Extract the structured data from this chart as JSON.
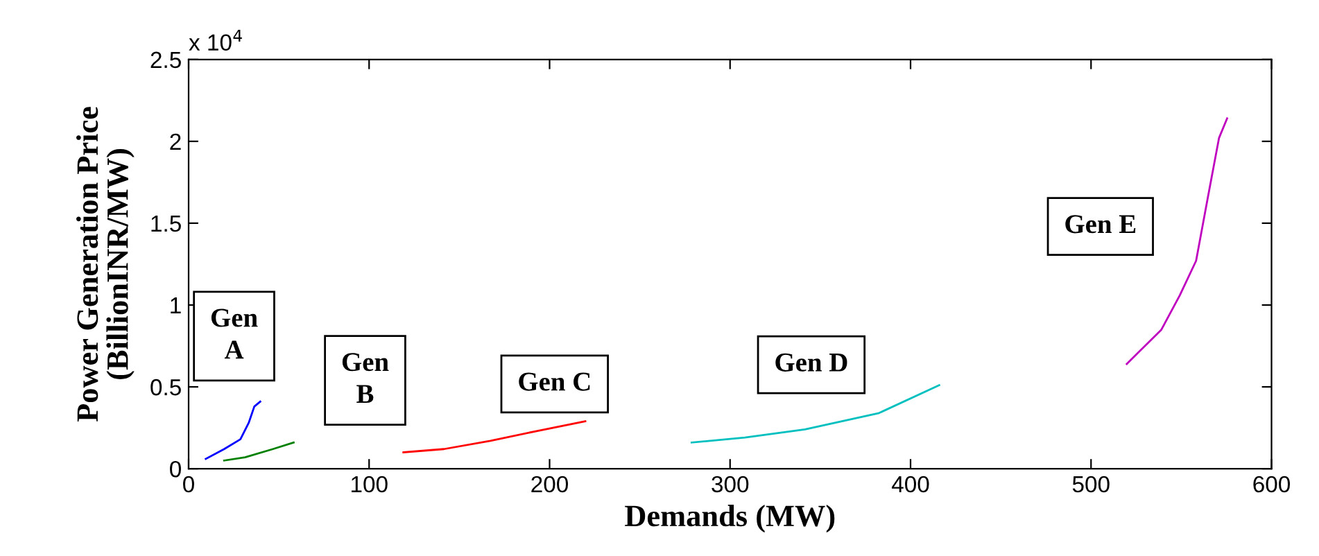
{
  "chart_data": {
    "type": "line",
    "xlabel": "Demands (MW)",
    "ylabel": "Power Generation Price\n(BillionINR/MW)",
    "xlim": [
      0,
      600
    ],
    "xticks": [
      0,
      100,
      200,
      300,
      400,
      500,
      600
    ],
    "ylim": [
      0,
      2.5
    ],
    "yticks": [
      0,
      0.5,
      1,
      1.5,
      2,
      2.5
    ],
    "grid": false,
    "legend": false,
    "marker": "none",
    "line_style": "solid",
    "series": [
      {
        "color": "#0000ff",
        "x": [
          9.5,
          19.7,
          28.7,
          33.3,
          36.4,
          39.7
        ],
        "values": [
          0.06,
          0.12,
          0.18,
          0.28,
          0.38,
          0.41
        ]
      },
      {
        "color": "#008000",
        "x": [
          19.7,
          31.3,
          46.7,
          58.2
        ],
        "values": [
          0.05,
          0.07,
          0.12,
          0.16
        ]
      },
      {
        "color": "#ff0000",
        "x": [
          119,
          141.5,
          167.2,
          192.8,
          219.8
        ],
        "values": [
          0.1,
          0.12,
          0.17,
          0.23,
          0.29
        ]
      },
      {
        "color": "#00bfbf",
        "x": [
          278.7,
          308.2,
          341.5,
          382.5,
          415.9
        ],
        "values": [
          0.16,
          0.19,
          0.24,
          0.34,
          0.51
        ]
      },
      {
        "color": "#bf00bf",
        "x": [
          519.8,
          539,
          549.2,
          558.2,
          564.6,
          570.9,
          575.4
        ],
        "values": [
          0.64,
          0.85,
          1.06,
          1.27,
          1.65,
          2.02,
          2.14
        ]
      }
    ],
    "annotations": [
      "x 10$^{4}$",
      "Gen\nA",
      "Gen\nB",
      "Gen C",
      "Gen D",
      "Gen E"
    ]
  }
}
